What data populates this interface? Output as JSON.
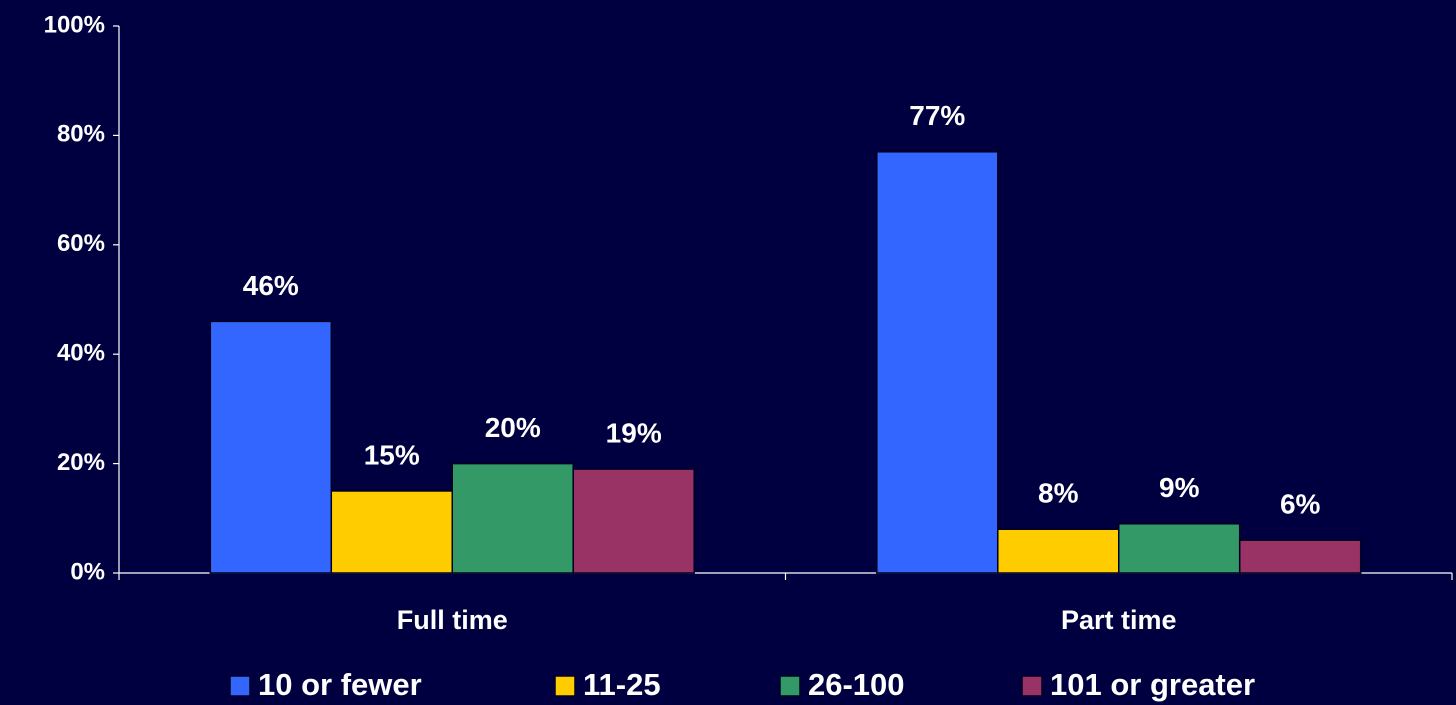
{
  "chart_data": {
    "type": "bar",
    "categories": [
      "Full time",
      "Part time"
    ],
    "series": [
      {
        "name": "10 or fewer",
        "color": "#3366ff",
        "values": [
          46,
          77
        ],
        "value_labels": [
          "46%",
          "77%"
        ]
      },
      {
        "name": "11-25",
        "color": "#ffcc00",
        "values": [
          15,
          8
        ],
        "value_labels": [
          "15%",
          "8%"
        ]
      },
      {
        "name": "26-100",
        "color": "#339966",
        "values": [
          20,
          9
        ],
        "value_labels": [
          "20%",
          "9%"
        ]
      },
      {
        "name": "101 or greater",
        "color": "#993366",
        "values": [
          19,
          6
        ],
        "value_labels": [
          "19%",
          "6%"
        ]
      }
    ],
    "ylim": [
      0,
      100
    ],
    "yticks": [
      {
        "value": 0,
        "label": "0%"
      },
      {
        "value": 20,
        "label": "20%"
      },
      {
        "value": 40,
        "label": "40%"
      },
      {
        "value": 60,
        "label": "60%"
      },
      {
        "value": 80,
        "label": "80%"
      },
      {
        "value": 100,
        "label": "100%"
      }
    ],
    "grid": false,
    "legend": "bottom"
  }
}
